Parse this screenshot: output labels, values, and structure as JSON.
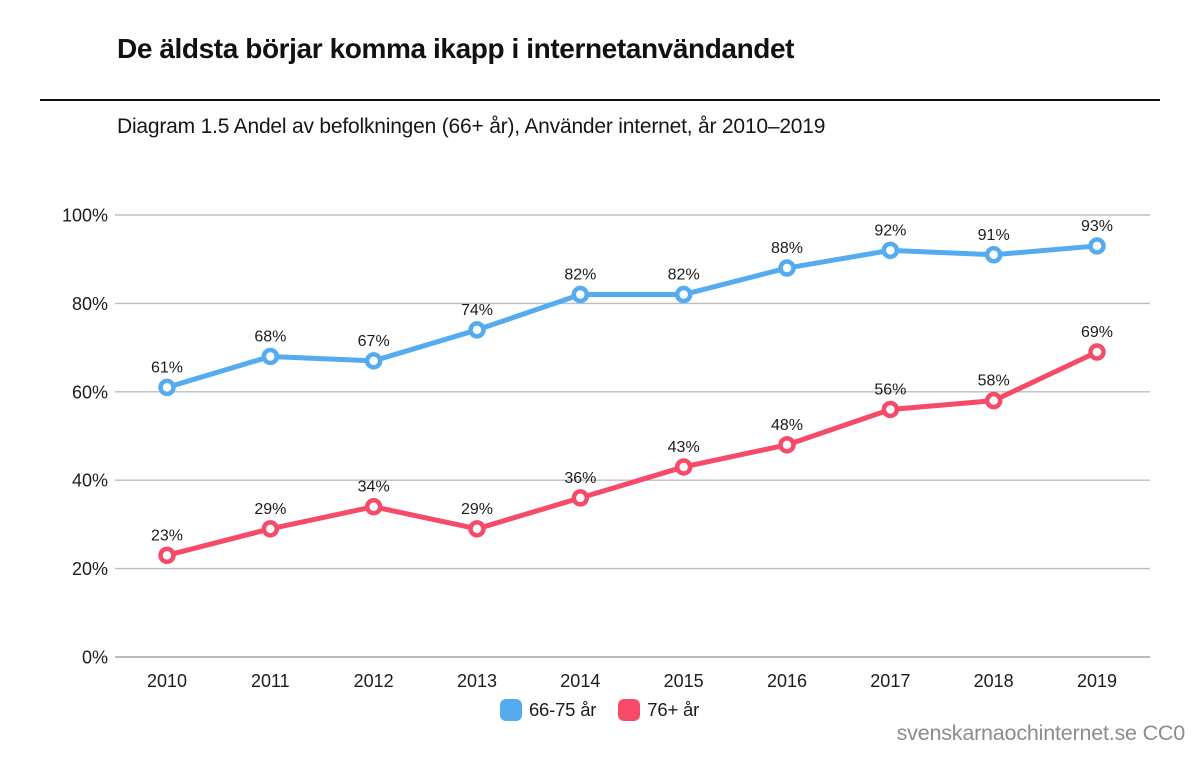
{
  "header": {
    "title_note": "title and subtitle live in chart_data"
  },
  "footer": {
    "watermark": "svenskarnaochinternet.se CC0"
  },
  "chart_data": {
    "type": "line",
    "title": "De äldsta börjar komma ikapp i internetanvändandet",
    "subtitle": "Diagram 1.5 Andel av befolkningen (66+ år), Använder internet, år 2010–2019",
    "x": [
      "2010",
      "2011",
      "2012",
      "2013",
      "2014",
      "2015",
      "2016",
      "2017",
      "2018",
      "2019"
    ],
    "series": [
      {
        "name": "66-75 år",
        "color": "#54abf0",
        "values": [
          61,
          68,
          67,
          74,
          82,
          82,
          88,
          92,
          91,
          93
        ]
      },
      {
        "name": "76+ år",
        "color": "#f74a68",
        "values": [
          23,
          29,
          34,
          29,
          36,
          43,
          48,
          56,
          58,
          69
        ]
      }
    ],
    "yticks": [
      0,
      20,
      40,
      60,
      80,
      100
    ],
    "ytick_suffix": "%",
    "ylim": [
      0,
      100
    ],
    "grid": true,
    "grid_color": "#bdbdbd",
    "axis_label_color": "#1c1c1c",
    "data_label_suffix": "%",
    "data_labels": true,
    "legend_position": "bottom",
    "marker": "open-circle"
  }
}
